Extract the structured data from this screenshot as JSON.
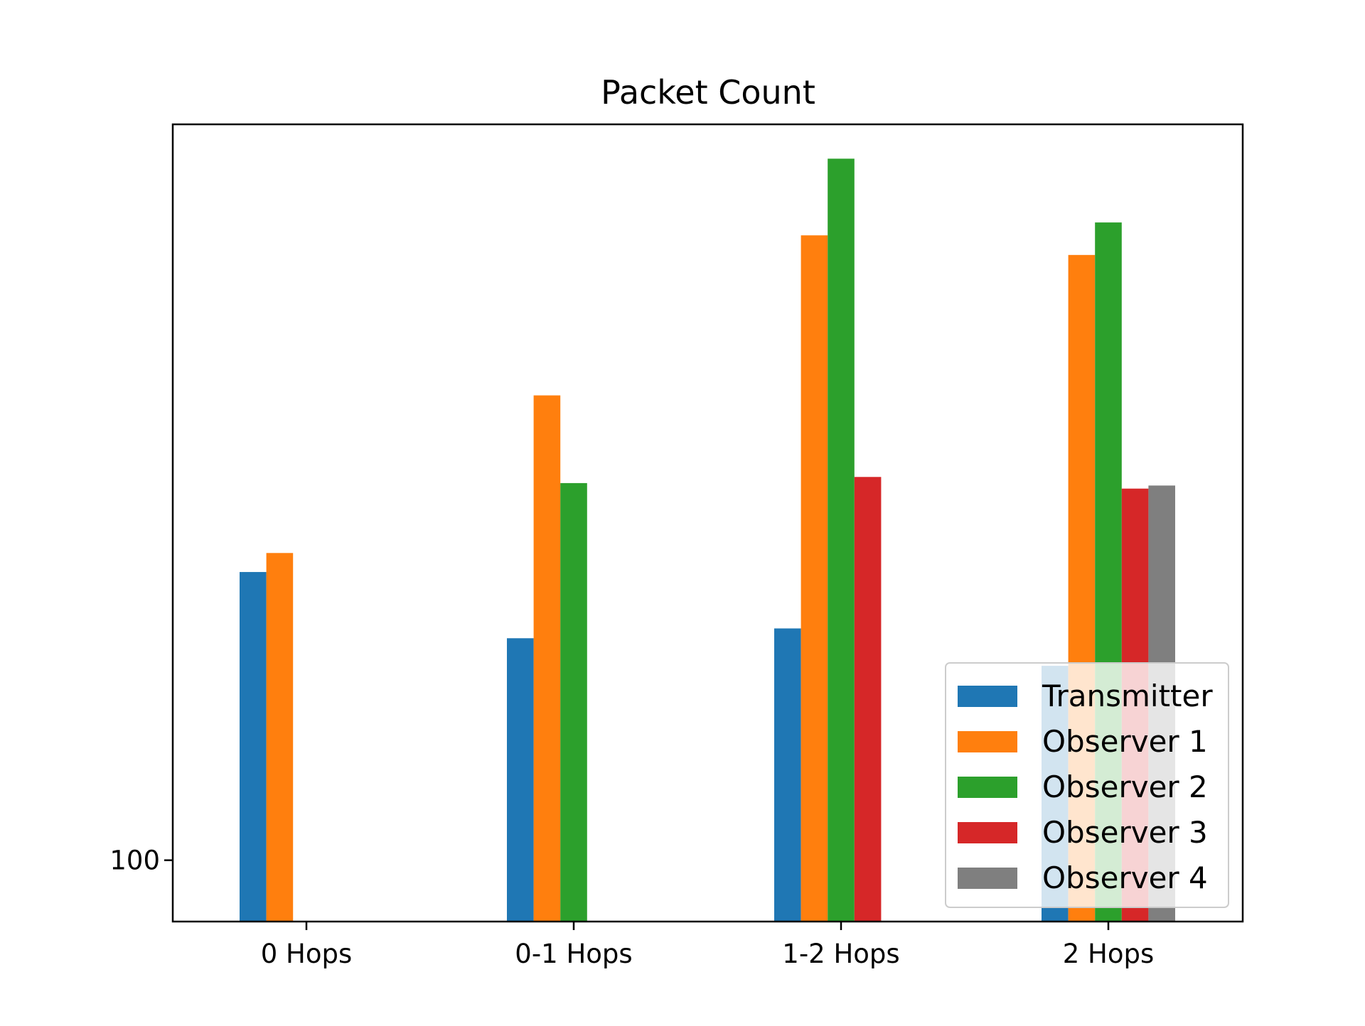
{
  "chart_data": {
    "type": "bar",
    "title": "Packet Count",
    "xlabel": "",
    "ylabel": "",
    "categories": [
      "0 Hops",
      "0-1 Hops",
      "1-2 Hops",
      "2 Hops"
    ],
    "ylim": [
      0,
      1300
    ],
    "ytick_labels": [
      "100"
    ],
    "grid": false,
    "legend_position": "lower-right",
    "series": [
      {
        "name": "Transmitter",
        "color": "#1f77b4",
        "values": [
          570,
          462,
          478,
          417
        ]
      },
      {
        "name": "Observer 1",
        "color": "#ff7f0e",
        "values": [
          601,
          858,
          1119,
          1087
        ]
      },
      {
        "name": "Observer 2",
        "color": "#2ca02c",
        "values": [
          null,
          715,
          1244,
          1140
        ]
      },
      {
        "name": "Observer 3",
        "color": "#d62728",
        "values": [
          null,
          null,
          725,
          706
        ]
      },
      {
        "name": "Observer 4",
        "color": "#7f7f7f",
        "values": [
          null,
          null,
          null,
          711
        ]
      }
    ]
  }
}
